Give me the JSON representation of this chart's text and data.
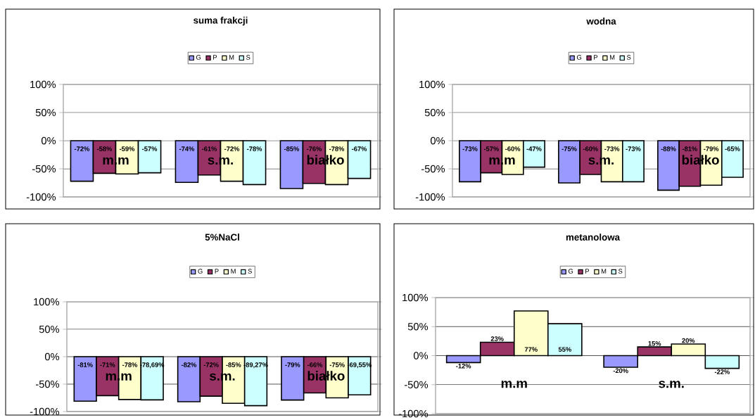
{
  "chart_data": [
    {
      "type": "bar",
      "title": "suma frakcji",
      "categories": [
        "m.m",
        "s.m.",
        "białko"
      ],
      "legend": "top",
      "grid": "y",
      "ylim": [
        -100,
        100
      ],
      "yticks": [
        {
          "value": -100,
          "label": "-100%"
        },
        {
          "value": -50,
          "label": "-50%"
        },
        {
          "value": 0,
          "label": "0%"
        },
        {
          "value": 50,
          "label": "50%"
        },
        {
          "value": 100,
          "label": "100%"
        }
      ],
      "series": [
        {
          "name": "G",
          "color": "#9999ff",
          "values": [
            -72,
            -74,
            -85
          ],
          "value_labels": [
            "-72%",
            "-74%",
            "-85%"
          ]
        },
        {
          "name": "P",
          "color": "#993366",
          "values": [
            -58,
            -61,
            -76
          ],
          "value_labels": [
            "-58%",
            "-61%",
            "-76%"
          ]
        },
        {
          "name": "M",
          "color": "#ffffcc",
          "values": [
            -59,
            -72,
            -78
          ],
          "value_labels": [
            "-59%",
            "-72%",
            "-78%"
          ]
        },
        {
          "name": "S",
          "color": "#ccffff",
          "values": [
            -57,
            -78,
            -67
          ],
          "value_labels": [
            "-57%",
            "-78%",
            "-67%"
          ]
        }
      ]
    },
    {
      "type": "bar",
      "title": "wodna",
      "categories": [
        "m.m",
        "s.m.",
        "białko"
      ],
      "legend": "top",
      "grid": "y",
      "ylim": [
        -100,
        100
      ],
      "yticks": [
        {
          "value": -100,
          "label": "-100%"
        },
        {
          "value": -50,
          "label": "-50%"
        },
        {
          "value": 0,
          "label": "0%"
        },
        {
          "value": 50,
          "label": "50%"
        },
        {
          "value": 100,
          "label": "100%"
        }
      ],
      "series": [
        {
          "name": "G",
          "color": "#9999ff",
          "values": [
            -73,
            -75,
            -88
          ],
          "value_labels": [
            "-73%",
            "-75%",
            "-88%"
          ]
        },
        {
          "name": "P",
          "color": "#993366",
          "values": [
            -57,
            -60,
            -81
          ],
          "value_labels": [
            "-57%",
            "-60%",
            "-81%"
          ]
        },
        {
          "name": "M",
          "color": "#ffffcc",
          "values": [
            -60,
            -73,
            -79
          ],
          "value_labels": [
            "-60%",
            "-73%",
            "-79%"
          ]
        },
        {
          "name": "S",
          "color": "#ccffff",
          "values": [
            -47,
            -73,
            -65
          ],
          "value_labels": [
            "-47%",
            "-73%",
            "-65%"
          ]
        }
      ]
    },
    {
      "type": "bar",
      "title": "5%NaCl",
      "categories": [
        "m.m",
        "s.m.",
        "białko"
      ],
      "legend": "top",
      "grid": "y",
      "ylim": [
        -100,
        100
      ],
      "yticks": [
        {
          "value": -100,
          "label": "-100%"
        },
        {
          "value": -50,
          "label": "-50%"
        },
        {
          "value": 0,
          "label": "0%"
        },
        {
          "value": 50,
          "label": "50%"
        },
        {
          "value": 100,
          "label": "100%"
        }
      ],
      "series": [
        {
          "name": "G",
          "color": "#9999ff",
          "values": [
            -81,
            -82,
            -79
          ],
          "value_labels": [
            "-81%",
            "-82%",
            "-79%"
          ]
        },
        {
          "name": "P",
          "color": "#993366",
          "values": [
            -71,
            -72,
            -66
          ],
          "value_labels": [
            "-71%",
            "-72%",
            "-66%"
          ]
        },
        {
          "name": "M",
          "color": "#ffffcc",
          "values": [
            -78,
            -85,
            -75
          ],
          "value_labels": [
            "-78%",
            "-85%",
            "-75%"
          ]
        },
        {
          "name": "S",
          "color": "#ccffff",
          "values": [
            -78.69,
            -89.27,
            -69.55
          ],
          "value_labels": [
            "-78,69%",
            "-89,27%",
            "-69,55%"
          ]
        }
      ]
    },
    {
      "type": "bar",
      "title": "metanolowa",
      "categories": [
        "m.m",
        "s.m."
      ],
      "legend": "top",
      "grid": "y",
      "ylim": [
        -100,
        100
      ],
      "yticks": [
        {
          "value": -100,
          "label": "-100%"
        },
        {
          "value": -50,
          "label": "-50%"
        },
        {
          "value": 0,
          "label": "0%"
        },
        {
          "value": 50,
          "label": "50%"
        },
        {
          "value": 100,
          "label": "100%"
        }
      ],
      "series": [
        {
          "name": "G",
          "color": "#9999ff",
          "values": [
            -12,
            -20
          ],
          "value_labels": [
            "-12%",
            "-20%"
          ]
        },
        {
          "name": "P",
          "color": "#993366",
          "values": [
            23,
            15
          ],
          "value_labels": [
            "23%",
            "15%"
          ]
        },
        {
          "name": "M",
          "color": "#ffffcc",
          "values": [
            77,
            20
          ],
          "value_labels": [
            "77%",
            "20%"
          ]
        },
        {
          "name": "S",
          "color": "#ccffff",
          "values": [
            55,
            -22
          ],
          "value_labels": [
            "55%",
            "-22%"
          ]
        }
      ]
    }
  ]
}
